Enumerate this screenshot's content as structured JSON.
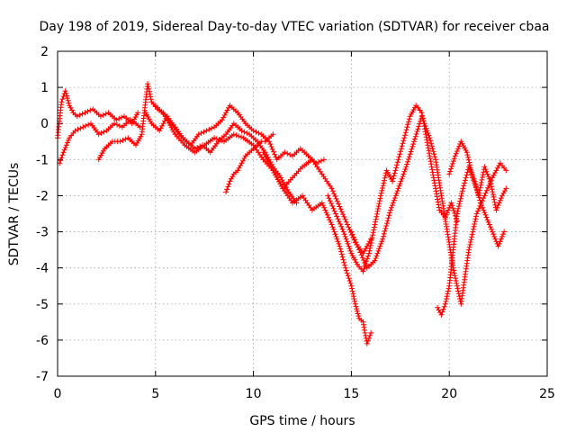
{
  "chart_data": {
    "type": "scatter",
    "title": "Day 198 of 2019, Sidereal Day-to-day VTEC variation (SDTVAR) for receiver cbaa",
    "xlabel": "GPS time / hours",
    "ylabel": "SDTVAR / TECUs",
    "xlim": [
      0,
      25
    ],
    "ylim": [
      -7,
      2
    ],
    "xticks": [
      0,
      5,
      10,
      15,
      20,
      25
    ],
    "yticks": [
      -7,
      -6,
      -5,
      -4,
      -3,
      -2,
      -1,
      0,
      1,
      2
    ],
    "grid": true,
    "marker": "+",
    "color": "#ff0000",
    "series": [
      {
        "name": "satellite-track-1",
        "x": [
          0.0,
          0.2,
          0.4,
          0.6,
          0.8,
          1.0,
          1.4,
          1.8,
          2.2,
          2.6,
          3.0,
          3.4,
          3.8,
          4.1
        ],
        "y": [
          -0.4,
          0.6,
          0.9,
          0.5,
          0.3,
          0.2,
          0.3,
          0.4,
          0.2,
          0.3,
          0.1,
          0.2,
          0.0,
          0.3
        ]
      },
      {
        "name": "satellite-track-2",
        "x": [
          0.1,
          0.3,
          0.6,
          0.9,
          1.3,
          1.7,
          2.1,
          2.5,
          2.9,
          3.3,
          3.7,
          4.0,
          4.2
        ],
        "y": [
          -1.1,
          -0.8,
          -0.4,
          -0.2,
          -0.1,
          0.0,
          -0.3,
          -0.2,
          0.0,
          -0.1,
          0.1,
          0.0,
          -0.1
        ]
      },
      {
        "name": "satellite-track-3",
        "x": [
          2.1,
          2.4,
          2.8,
          3.2,
          3.6,
          4.0,
          4.3,
          4.6,
          4.8,
          5.1,
          5.4,
          5.8,
          6.2,
          6.6,
          7.0,
          7.4,
          7.8,
          8.2,
          8.6,
          9.0,
          9.4,
          9.8,
          10.2,
          10.6,
          11.0,
          11.4,
          11.8,
          12.2
        ],
        "y": [
          -1.0,
          -0.7,
          -0.5,
          -0.5,
          -0.4,
          -0.6,
          -0.3,
          1.1,
          0.6,
          0.4,
          0.3,
          0.0,
          -0.3,
          -0.5,
          -0.7,
          -0.6,
          -0.8,
          -0.5,
          -0.3,
          0.0,
          -0.2,
          -0.3,
          -0.5,
          -0.8,
          -1.2,
          -1.5,
          -1.9,
          -2.2
        ]
      },
      {
        "name": "satellite-track-4",
        "x": [
          4.5,
          4.8,
          5.2,
          5.6,
          6.0,
          6.4,
          6.8,
          7.2,
          7.6,
          8.0,
          8.4,
          8.8,
          9.2,
          9.6,
          10.0,
          10.4,
          10.8,
          11.2,
          11.6,
          12.0,
          12.4,
          12.8,
          13.2,
          13.6
        ],
        "y": [
          0.3,
          0.0,
          -0.2,
          0.2,
          -0.1,
          -0.4,
          -0.6,
          -0.3,
          -0.2,
          -0.1,
          0.1,
          0.5,
          0.3,
          0.0,
          -0.2,
          -0.3,
          -0.5,
          -1.0,
          -0.8,
          -0.9,
          -0.7,
          -0.9,
          -1.1,
          -1.0
        ]
      },
      {
        "name": "satellite-track-5",
        "x": [
          5.0,
          5.5,
          6.0,
          6.5,
          7.0,
          7.5,
          8.0,
          8.5,
          9.0,
          9.5,
          10.0,
          10.5,
          11.0,
          11.5,
          12.0,
          12.5,
          13.0,
          13.5,
          14.0,
          14.4,
          14.8,
          15.2,
          15.6,
          16.0
        ],
        "y": [
          0.5,
          0.2,
          -0.3,
          -0.6,
          -0.8,
          -0.6,
          -0.4,
          -0.5,
          -0.3,
          -0.4,
          -0.6,
          -1.0,
          -1.3,
          -1.8,
          -1.5,
          -1.2,
          -1.0,
          -1.4,
          -1.8,
          -2.3,
          -2.8,
          -3.3,
          -3.6,
          -3.2
        ]
      },
      {
        "name": "satellite-track-6",
        "x": [
          8.6,
          8.8,
          9.0,
          9.2,
          9.4,
          9.6,
          9.8,
          10.0,
          10.2,
          10.4,
          10.6,
          10.8,
          11.0
        ],
        "y": [
          -1.9,
          -1.6,
          -1.4,
          -1.3,
          -1.1,
          -0.9,
          -0.8,
          -0.7,
          -0.6,
          -0.5,
          -0.5,
          -0.4,
          -0.3
        ]
      },
      {
        "name": "satellite-track-7",
        "x": [
          10.5,
          11.0,
          11.5,
          12.0,
          12.5,
          13.0,
          13.5,
          14.0,
          14.4,
          14.7,
          15.0,
          15.2,
          15.4,
          15.6,
          15.8,
          16.0
        ],
        "y": [
          -0.8,
          -1.3,
          -1.8,
          -2.2,
          -2.0,
          -2.4,
          -2.2,
          -2.8,
          -3.4,
          -4.0,
          -4.5,
          -5.0,
          -5.4,
          -5.5,
          -6.1,
          -5.8
        ]
      },
      {
        "name": "satellite-track-8",
        "x": [
          13.8,
          14.2,
          14.6,
          15.0,
          15.3,
          15.6,
          15.9,
          16.2,
          16.5,
          16.8,
          17.1,
          17.4,
          17.7,
          18.0,
          18.3,
          18.6,
          18.9,
          19.2,
          19.5,
          19.8,
          20.1,
          20.4
        ],
        "y": [
          -2.0,
          -2.5,
          -3.0,
          -3.6,
          -3.9,
          -4.1,
          -3.6,
          -2.8,
          -2.0,
          -1.3,
          -1.6,
          -1.0,
          -0.4,
          0.2,
          0.5,
          0.3,
          -0.6,
          -1.5,
          -2.4,
          -2.6,
          -2.2,
          -2.7
        ]
      },
      {
        "name": "satellite-track-9",
        "x": [
          15.0,
          15.4,
          15.8,
          16.2,
          16.6,
          17.0,
          17.4,
          17.8,
          18.2,
          18.6,
          19.0,
          19.3,
          19.6,
          19.9,
          20.2,
          20.6,
          21.0,
          21.4,
          21.8,
          22.2,
          22.6,
          22.9
        ],
        "y": [
          -3.0,
          -3.5,
          -4.0,
          -3.8,
          -3.2,
          -2.4,
          -1.8,
          -1.2,
          -0.5,
          0.2,
          -0.4,
          -1.0,
          -2.0,
          -3.0,
          -4.0,
          -5.0,
          -3.5,
          -2.5,
          -2.0,
          -1.5,
          -1.1,
          -1.3
        ]
      },
      {
        "name": "satellite-track-10",
        "x": [
          19.4,
          19.6,
          19.8,
          20.0,
          20.2,
          20.4,
          20.7,
          21.0,
          21.3,
          21.6,
          21.9,
          22.2,
          22.5,
          22.8
        ],
        "y": [
          -5.1,
          -5.3,
          -5.0,
          -4.5,
          -3.5,
          -2.5,
          -1.8,
          -1.2,
          -1.6,
          -2.2,
          -2.6,
          -3.0,
          -3.4,
          -3.0
        ]
      },
      {
        "name": "satellite-track-11",
        "x": [
          20.0,
          20.3,
          20.6,
          20.9,
          21.2,
          21.5,
          21.8,
          22.1,
          22.4,
          22.7,
          22.9
        ],
        "y": [
          -1.4,
          -0.9,
          -0.5,
          -0.8,
          -1.5,
          -2.0,
          -1.2,
          -1.6,
          -2.4,
          -2.0,
          -1.8
        ]
      }
    ]
  }
}
